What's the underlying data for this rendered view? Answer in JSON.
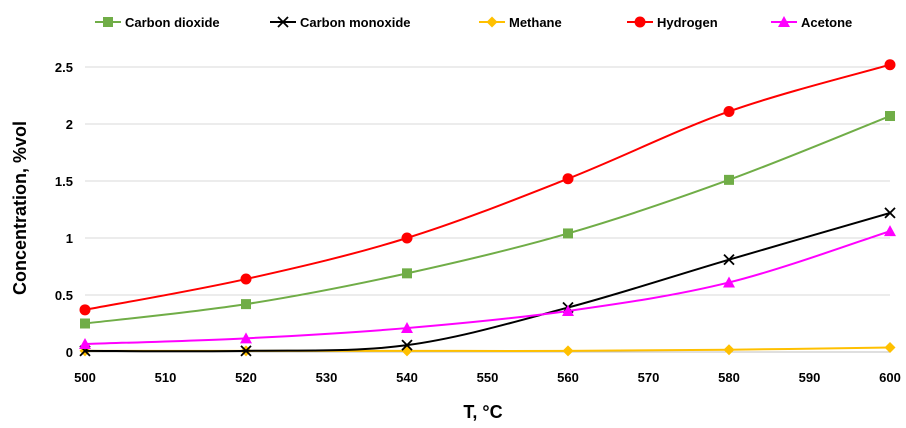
{
  "chart_data": {
    "type": "line",
    "title": "",
    "xlabel": "T, °C",
    "ylabel": "Concentration, %vol",
    "xlim": [
      500,
      600
    ],
    "ylim": [
      0,
      2.5
    ],
    "x_ticks": [
      500,
      510,
      520,
      530,
      540,
      550,
      560,
      570,
      580,
      590,
      600
    ],
    "y_ticks": [
      0,
      0.5,
      1,
      1.5,
      2,
      2.5
    ],
    "y_tick_labels": [
      "0",
      "0.5",
      "1",
      "1.5",
      "2",
      "2.5"
    ],
    "grid": "horizontal",
    "legend_position": "top",
    "x": [
      500,
      520,
      540,
      560,
      580,
      600
    ],
    "series": [
      {
        "name": "Carbon dioxide",
        "marker": "square",
        "color": "#70ad47",
        "values": [
          0.25,
          0.42,
          0.69,
          1.04,
          1.51,
          2.07
        ]
      },
      {
        "name": "Carbon monoxide",
        "marker": "x",
        "color": "#000000",
        "values": [
          0.01,
          0.01,
          0.06,
          0.39,
          0.81,
          1.22
        ]
      },
      {
        "name": "Methane",
        "marker": "diamond",
        "color": "#ffc000",
        "values": [
          0.01,
          0.01,
          0.01,
          0.01,
          0.02,
          0.04
        ]
      },
      {
        "name": "Hydrogen",
        "marker": "circle",
        "color": "#ff0000",
        "values": [
          0.37,
          0.64,
          1.0,
          1.52,
          2.11,
          2.52
        ]
      },
      {
        "name": "Acetone",
        "marker": "triangle",
        "color": "#ff00ff",
        "values": [
          0.07,
          0.12,
          0.21,
          0.36,
          0.61,
          1.06
        ]
      }
    ]
  }
}
